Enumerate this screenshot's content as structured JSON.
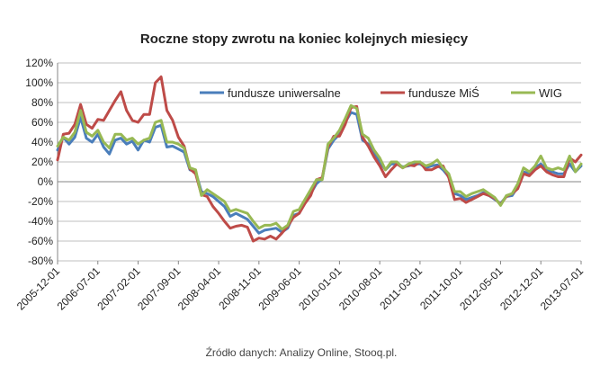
{
  "chart_data": {
    "type": "line",
    "title": "Roczne stopy zwrotu na koniec kolejnych miesięcy",
    "source_note": "Źródło danych: Analizy Online, Stooq.pl.",
    "xlabel": "",
    "ylabel": "",
    "ylim": [
      -80,
      120
    ],
    "y_ticks": [
      120,
      100,
      80,
      60,
      40,
      20,
      0,
      -20,
      -40,
      -60,
      -80
    ],
    "y_tick_labels": [
      "120%",
      "100%",
      "80%",
      "60%",
      "40%",
      "20%",
      "0%",
      "-20%",
      "-40%",
      "-60%",
      "-80%"
    ],
    "x_tick_labels": [
      "2005-12-01",
      "2006-07-01",
      "2007-02-01",
      "2007-09-01",
      "2008-04-01",
      "2008-11-01",
      "2009-06-01",
      "2010-01-01",
      "2010-08-01",
      "2011-03-01",
      "2011-10-01",
      "2012-05-01",
      "2012-12-01",
      "2013-07-01"
    ],
    "grid": true,
    "legend_position": "top",
    "colors": {
      "fundusze_uniwersalne": "#4a7ebb",
      "fundusze_mis": "#be4b48",
      "wig": "#98b954",
      "grid": "#bfbfbf",
      "axis": "#868686"
    },
    "x_start": "2005-12",
    "x_end": "2013-07",
    "series": [
      {
        "name": "fundusze uniwersalne",
        "color": "#4a7ebb",
        "values": [
          32,
          45,
          38,
          45,
          65,
          44,
          40,
          48,
          35,
          28,
          42,
          44,
          38,
          41,
          32,
          42,
          40,
          55,
          57,
          35,
          36,
          33,
          30,
          12,
          10,
          -10,
          -12,
          -15,
          -20,
          -25,
          -35,
          -32,
          -35,
          -38,
          -45,
          -52,
          -49,
          -48,
          -47,
          -51,
          -47,
          -34,
          -32,
          -20,
          -12,
          -2,
          3,
          33,
          42,
          48,
          60,
          70,
          68,
          42,
          38,
          28,
          20,
          12,
          18,
          18,
          15,
          16,
          18,
          18,
          14,
          16,
          17,
          12,
          5,
          -12,
          -14,
          -18,
          -16,
          -14,
          -11,
          -14,
          -18,
          -22,
          -15,
          -14,
          -5,
          10,
          8,
          14,
          18,
          12,
          10,
          8,
          8,
          18,
          10,
          16
        ]
      },
      {
        "name": "fundusze MiŚ",
        "color": "#be4b48",
        "values": [
          22,
          48,
          49,
          58,
          78,
          58,
          54,
          63,
          62,
          72,
          82,
          91,
          72,
          62,
          60,
          68,
          68,
          100,
          106,
          72,
          62,
          45,
          36,
          13,
          8,
          -13,
          -15,
          -25,
          -32,
          -40,
          -47,
          -45,
          -44,
          -46,
          -60,
          -57,
          -58,
          -55,
          -58,
          -52,
          -45,
          -36,
          -32,
          -22,
          -14,
          2,
          4,
          35,
          46,
          46,
          58,
          75,
          76,
          45,
          36,
          25,
          16,
          5,
          12,
          18,
          14,
          17,
          16,
          20,
          12,
          12,
          15,
          16,
          4,
          -18,
          -17,
          -21,
          -18,
          -15,
          -12,
          -14,
          -17,
          -23,
          -15,
          -12,
          -7,
          8,
          6,
          12,
          16,
          10,
          7,
          5,
          5,
          24,
          20,
          27
        ]
      },
      {
        "name": "WIG",
        "color": "#98b954",
        "values": [
          36,
          45,
          42,
          50,
          72,
          50,
          46,
          52,
          40,
          34,
          48,
          48,
          42,
          44,
          38,
          42,
          44,
          60,
          62,
          40,
          40,
          38,
          34,
          14,
          12,
          -14,
          -8,
          -12,
          -16,
          -20,
          -30,
          -28,
          -30,
          -32,
          -40,
          -47,
          -44,
          -44,
          -42,
          -48,
          -44,
          -30,
          -28,
          -18,
          -8,
          2,
          2,
          38,
          44,
          52,
          64,
          77,
          74,
          48,
          44,
          32,
          24,
          12,
          20,
          20,
          14,
          18,
          20,
          20,
          16,
          18,
          22,
          14,
          8,
          -10,
          -10,
          -15,
          -12,
          -10,
          -8,
          -12,
          -16,
          -24,
          -14,
          -12,
          -2,
          14,
          10,
          16,
          26,
          14,
          12,
          14,
          12,
          26,
          10,
          18
        ]
      }
    ]
  }
}
